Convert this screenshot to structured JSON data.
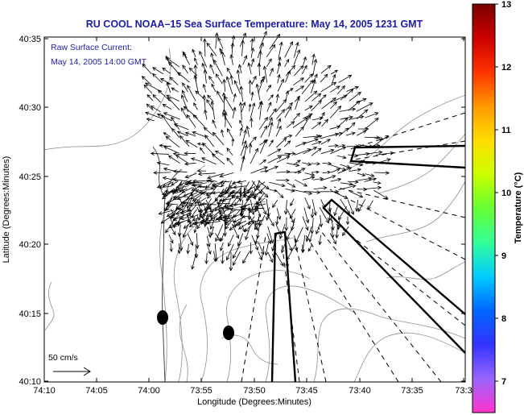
{
  "title": "RU COOL  NOAA–15  Sea Surface Temperature:  May 14, 2005 1231 GMT",
  "annotation": {
    "line1": "Raw Surface Current:",
    "line2": "May 14, 2005 14:00 GMT"
  },
  "axes": {
    "xlabel": "Longitude (Degrees:Minutes)",
    "ylabel": "Latitude (Degrees:Minutes)",
    "x_ticks": [
      "74:10",
      "74:05",
      "74:00",
      "73:55",
      "73:50",
      "73:45",
      "73:40",
      "73:35",
      "73:3"
    ],
    "y_ticks": [
      "40:35",
      "40:30",
      "40:25",
      "40:20",
      "40:15",
      "40:10"
    ]
  },
  "scale_arrow": {
    "label": "50 cm/s"
  },
  "colorbar": {
    "label": "Temperature (°C)",
    "ticks": [
      "13",
      "12",
      "11",
      "10",
      "9",
      "8",
      "7"
    ],
    "min": 6.5,
    "max": 13,
    "colors": [
      "#ff33cc",
      "#9966ff",
      "#3333ff",
      "#0066ff",
      "#00ccff",
      "#33ff99",
      "#66ff33",
      "#ccff00",
      "#ffdd00",
      "#ff9900",
      "#ff3300",
      "#cc0000",
      "#7a0000"
    ]
  },
  "map_colors": {
    "frame": "#000000",
    "contour": "#9a9a9a",
    "coast": "#444444",
    "vector": "#000000",
    "marker": "#000000"
  }
}
